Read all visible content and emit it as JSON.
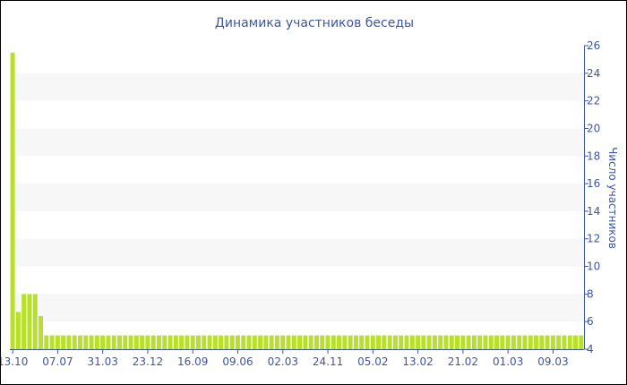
{
  "chart_data": {
    "type": "bar",
    "title": "Динамика участников беседы",
    "ylabel": "Число участников",
    "xlabel": "",
    "ylim": [
      4,
      26
    ],
    "yticks": [
      4,
      6,
      8,
      10,
      12,
      14,
      16,
      18,
      20,
      22,
      24,
      26
    ],
    "y_axis_side": "right",
    "xtick_labels": [
      "13.10",
      "07.07",
      "31.03",
      "23.12",
      "16.09",
      "09.06",
      "02.03",
      "24.11",
      "05.02",
      "13.02",
      "21.02",
      "01.03",
      "09.03"
    ],
    "xtick_every_n_bars": 8,
    "values": [
      25.5,
      6.7,
      8,
      8,
      8,
      6.4,
      5,
      5,
      5,
      5,
      5,
      5,
      5,
      5,
      5,
      5,
      5,
      5,
      5,
      5,
      5,
      5,
      5,
      5,
      5,
      5,
      5,
      5,
      5,
      5,
      5,
      5,
      5,
      5,
      5,
      5,
      5,
      5,
      5,
      5,
      5,
      5,
      5,
      5,
      5,
      5,
      5,
      5,
      5,
      5,
      5,
      5,
      5,
      5,
      5,
      5,
      5,
      5,
      5,
      5,
      5,
      5,
      5,
      5,
      5,
      5,
      5,
      5,
      5,
      5,
      5,
      5,
      5,
      5,
      5,
      5,
      5,
      5,
      5,
      5,
      5,
      5,
      5,
      5,
      5,
      5,
      5,
      5,
      5,
      5,
      5,
      5,
      5,
      5,
      5,
      5,
      5,
      5,
      5,
      5,
      5,
      5
    ],
    "grid": "alternating bands",
    "colors": {
      "bar": "#b8e02a",
      "axis": "#3e56a0",
      "band": "#f7f7f7"
    }
  }
}
